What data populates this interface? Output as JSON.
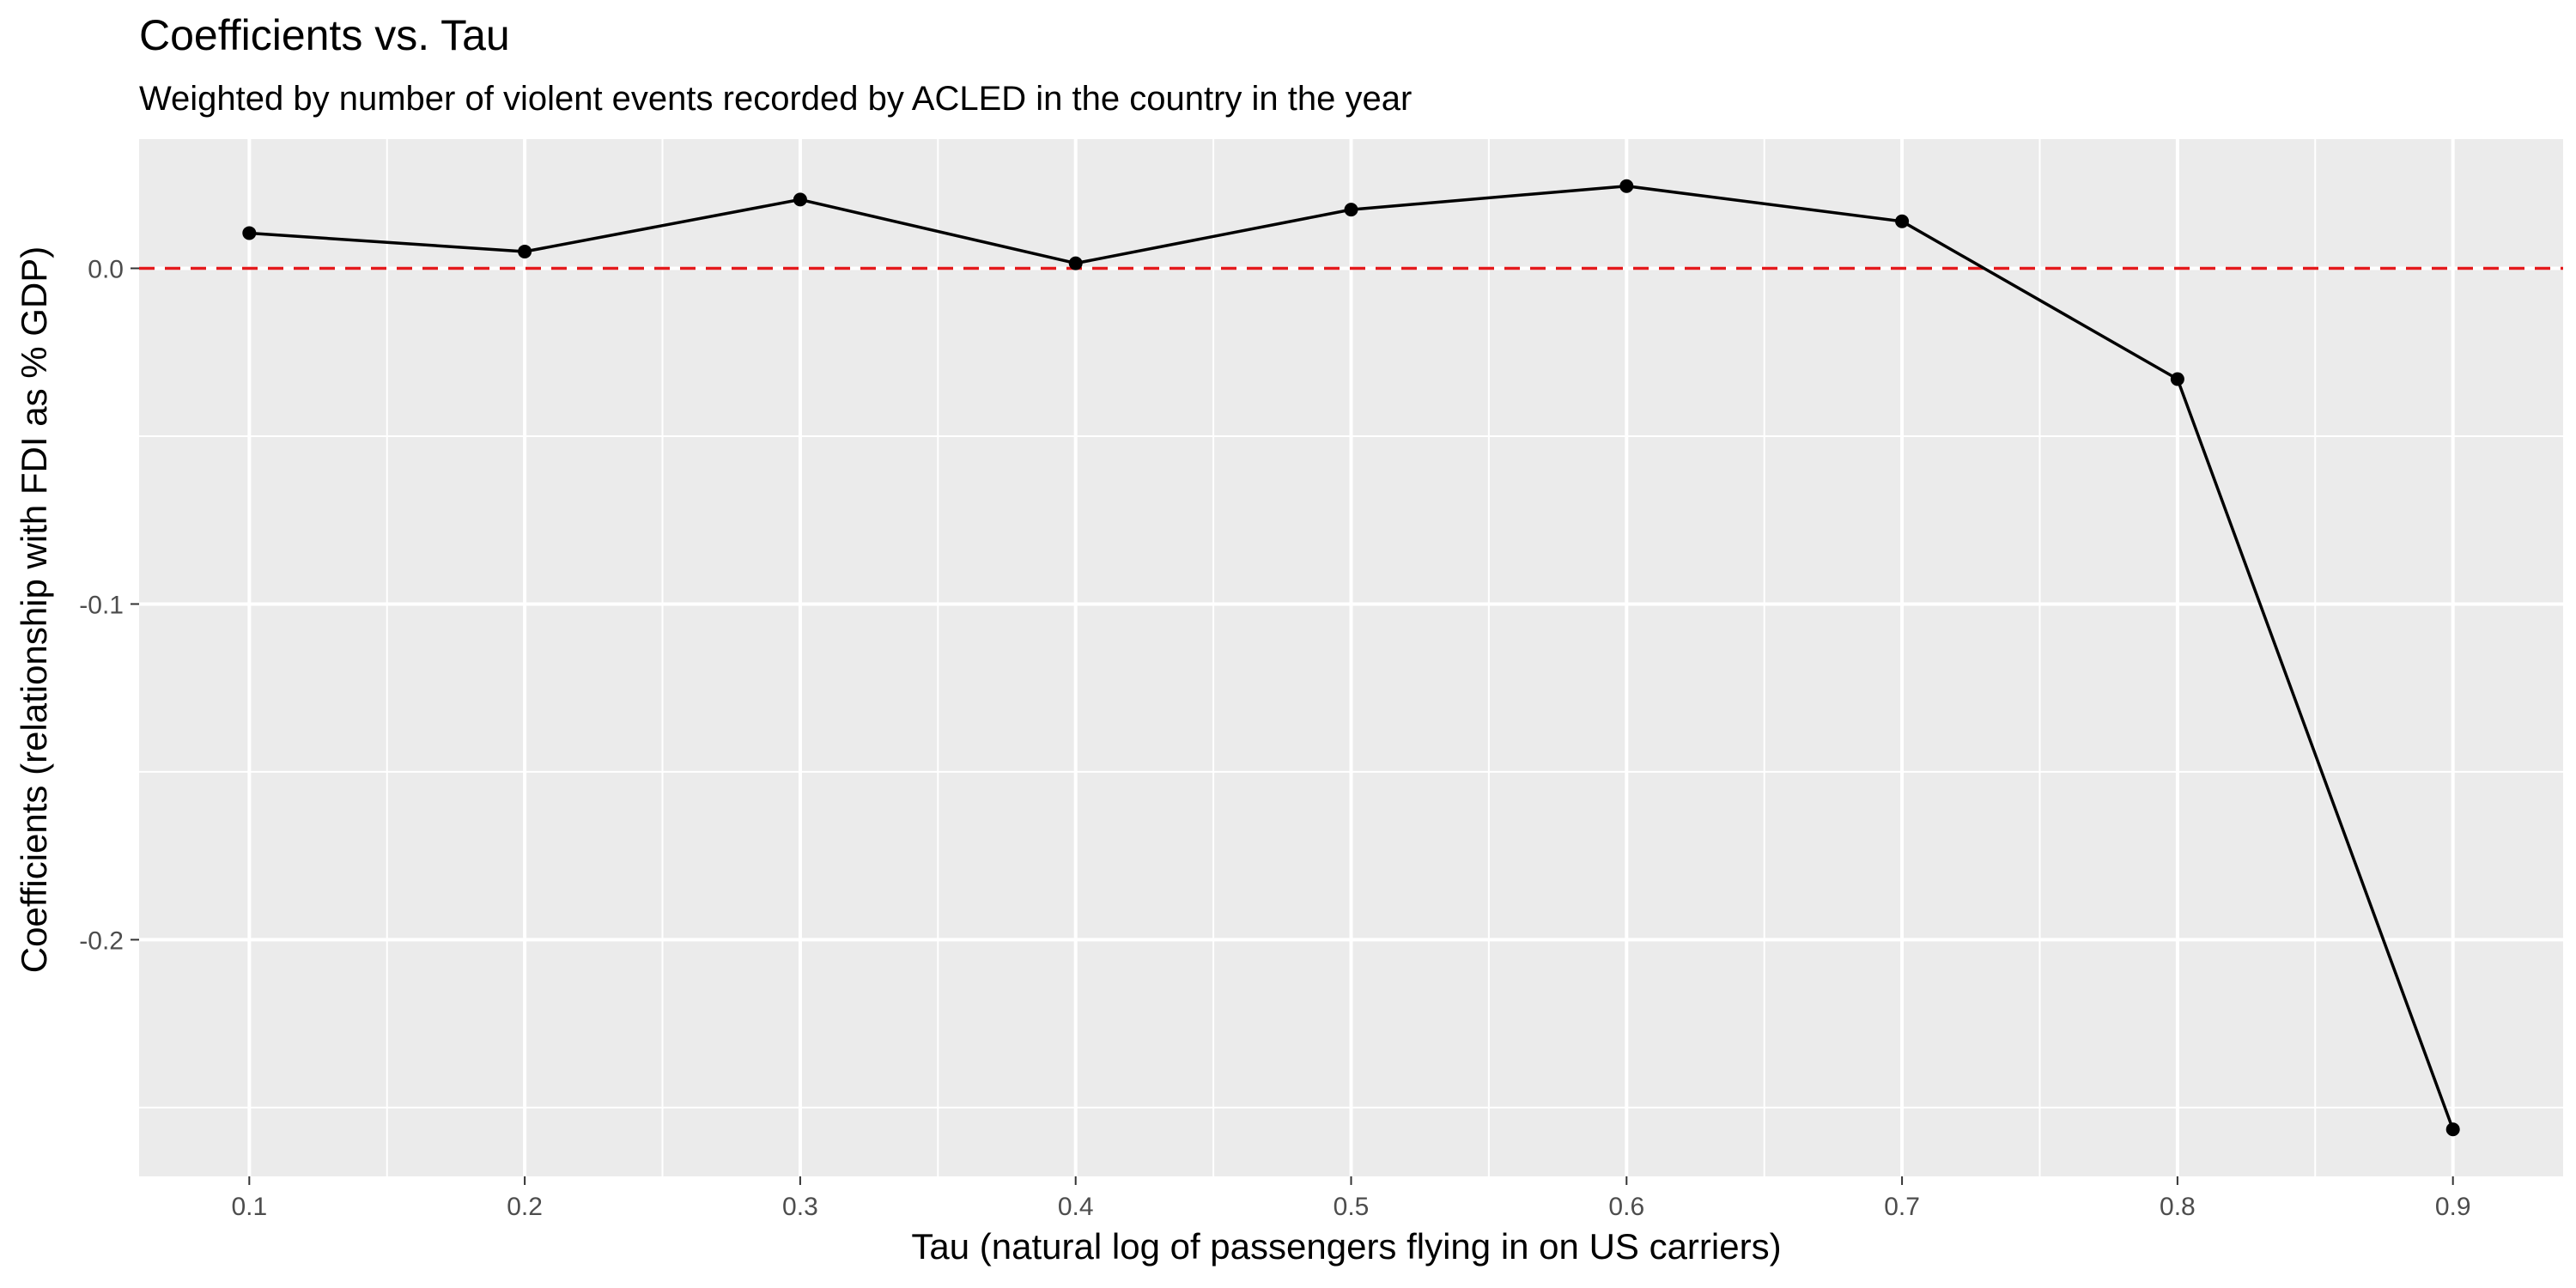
{
  "chart_data": {
    "type": "line",
    "title": "Coefficients vs. Tau",
    "subtitle": "Weighted by number of violent events recorded by ACLED in the country in the year",
    "xlabel": "Tau (natural log of passengers flying in on US carriers)",
    "ylabel": "Coefficients (relationship with FDI as % GDP)",
    "xlim": [
      0.06,
      0.94
    ],
    "ylim": [
      -0.2705,
      0.0385
    ],
    "x_ticks": [
      "0.1",
      "0.2",
      "0.3",
      "0.4",
      "0.5",
      "0.6",
      "0.7",
      "0.8",
      "0.9"
    ],
    "y_ticks": [
      "0.0",
      "-0.1",
      "-0.2"
    ],
    "x": [
      0.1,
      0.2,
      0.3,
      0.4,
      0.5,
      0.6,
      0.7,
      0.8,
      0.9
    ],
    "series": [
      {
        "values": [
          0.0105,
          0.005,
          0.0205,
          0.0015,
          0.0175,
          0.0245,
          0.014,
          -0.033,
          -0.2565
        ]
      }
    ],
    "reference_line": {
      "y": 0.0,
      "style": "dashed",
      "color": "#e41a1c"
    },
    "grid": true,
    "panel_background": "#ebebeb",
    "gridline_color": "#ffffff",
    "line_color": "#000000",
    "point_color": "#000000"
  }
}
